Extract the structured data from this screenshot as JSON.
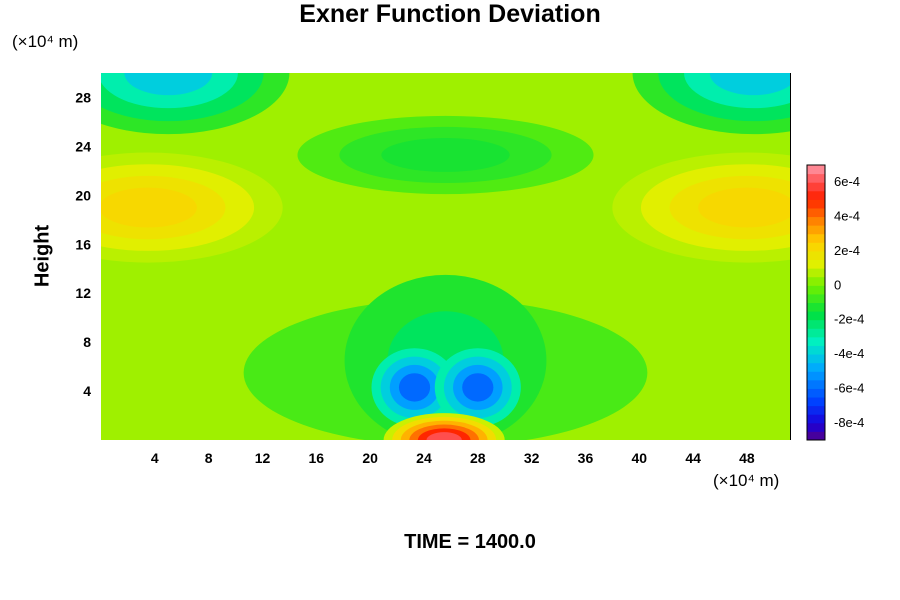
{
  "chart_data": {
    "type": "heatmap",
    "title": "Exner Function Deviation",
    "ylabel": "Height",
    "xlabel": "",
    "x_unit": "(×10⁴ m)",
    "y_unit": "(×10⁴ m)",
    "footer": "TIME = 1400.0",
    "xlim": [
      0,
      51.2
    ],
    "ylim": [
      0,
      30
    ],
    "x_ticks": [
      4,
      8,
      12,
      16,
      20,
      24,
      28,
      32,
      36,
      40,
      44,
      48
    ],
    "y_ticks": [
      4,
      8,
      12,
      16,
      20,
      24,
      28
    ],
    "colorbar": {
      "range": [
        -0.0009,
        0.0007
      ],
      "ticks": [
        {
          "value": 0.0006,
          "label": "6e-4"
        },
        {
          "value": 0.0004,
          "label": "4e-4"
        },
        {
          "value": 0.0002,
          "label": "2e-4"
        },
        {
          "value": 0,
          "label": "0"
        },
        {
          "value": -0.0002,
          "label": "-2e-4"
        },
        {
          "value": -0.0004,
          "label": "-4e-4"
        },
        {
          "value": -0.0006,
          "label": "-6e-4"
        },
        {
          "value": -0.0008,
          "label": "-8e-4"
        }
      ]
    },
    "features": [
      {
        "kind": "positive maximum",
        "x": 25.5,
        "y": 0.5,
        "value": 0.0006
      },
      {
        "kind": "negative minimum",
        "x": 23.3,
        "y": 4.3,
        "value": -0.0006
      },
      {
        "kind": "negative minimum",
        "x": 28.0,
        "y": 4.3,
        "value": -0.0006
      },
      {
        "kind": "negative region",
        "x": 5.0,
        "y": 29.5,
        "value": -0.0004
      },
      {
        "kind": "negative region",
        "x": 48.5,
        "y": 29.5,
        "value": -0.0004
      },
      {
        "kind": "positive region",
        "x": 5.0,
        "y": 19.0,
        "value": 0.0002
      },
      {
        "kind": "positive region",
        "x": 47.0,
        "y": 19.0,
        "value": 0.0002
      },
      {
        "kind": "negative region",
        "x": 25.5,
        "y": 23.3,
        "value": -0.0001
      }
    ]
  }
}
